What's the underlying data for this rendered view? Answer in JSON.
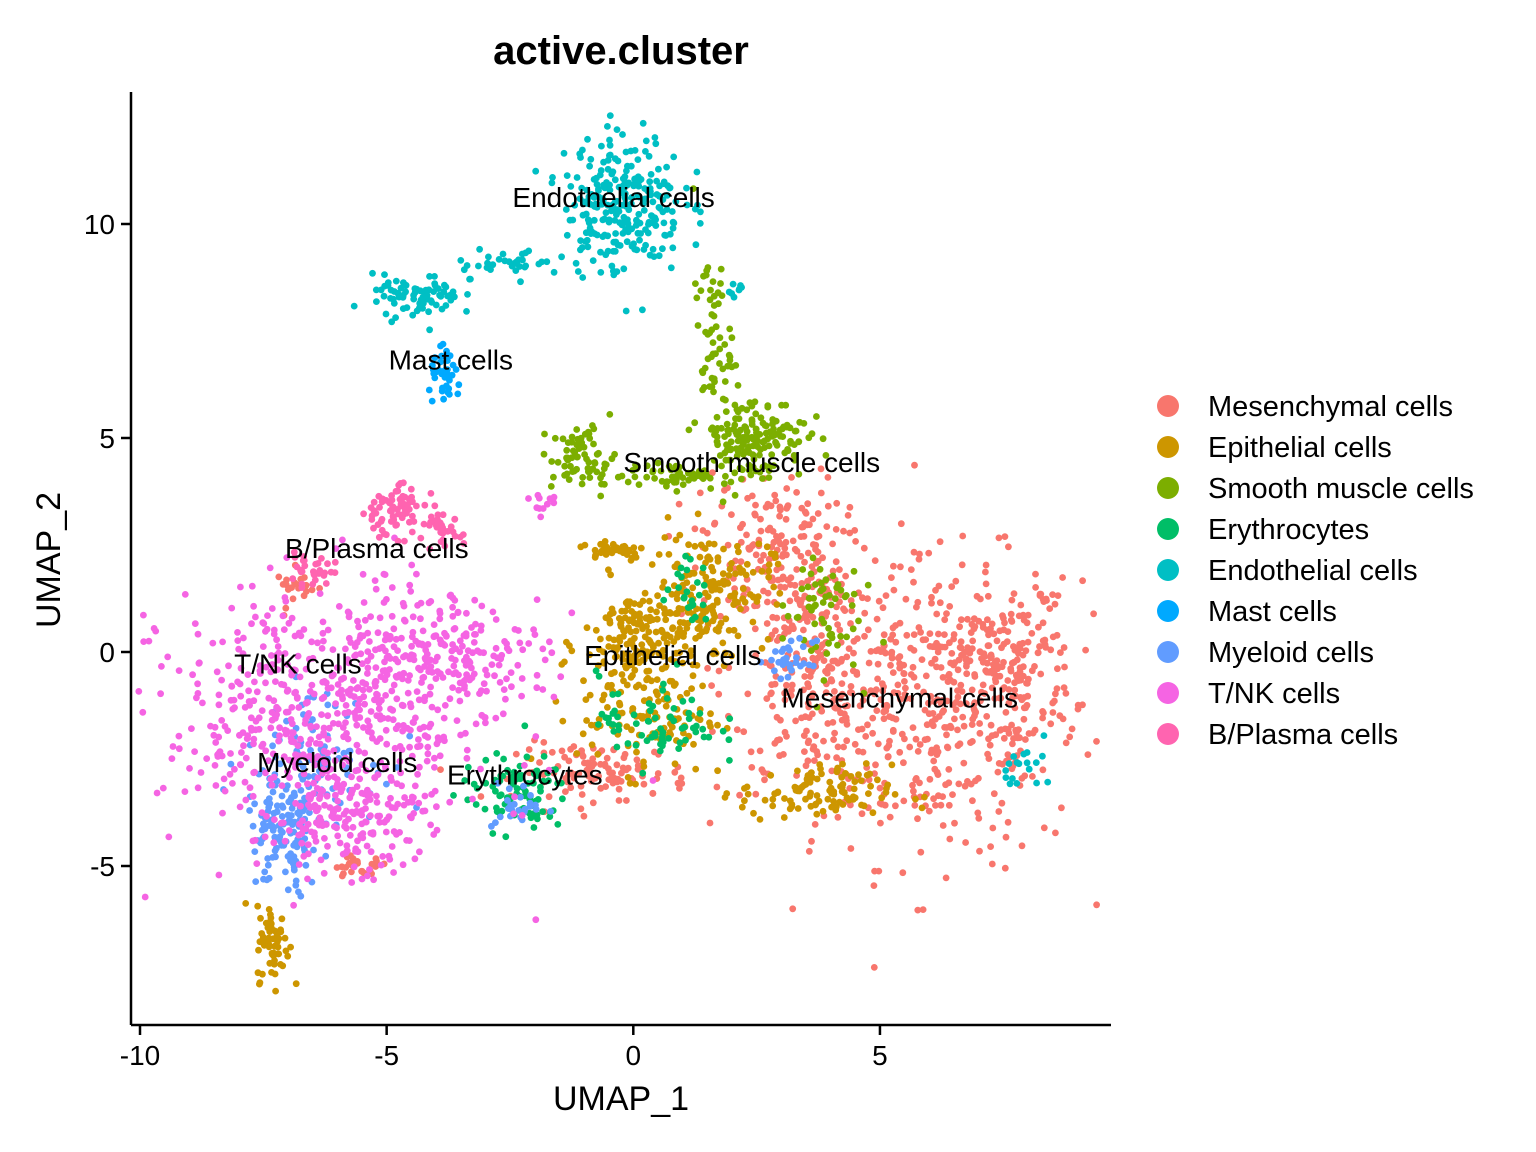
{
  "chart_data": {
    "type": "scatter",
    "title": "active.cluster",
    "xlabel": "UMAP_1",
    "ylabel": "UMAP_2",
    "xlim": [
      -10.2,
      9.5
    ],
    "ylim": [
      -8.5,
      13
    ],
    "xticks": [
      {
        "value": -10,
        "label": "-10"
      },
      {
        "value": -5,
        "label": "-5"
      },
      {
        "value": 0,
        "label": "0"
      },
      {
        "value": 5,
        "label": "5"
      }
    ],
    "yticks": [
      {
        "value": -5,
        "label": "-5"
      },
      {
        "value": 0,
        "label": "0"
      },
      {
        "value": 5,
        "label": "5"
      },
      {
        "value": 10,
        "label": "10"
      }
    ],
    "grid": false,
    "legend_position": "right",
    "series": [
      {
        "name": "Mesenchymal cells",
        "color": "#F8766D",
        "label": {
          "text": "Mesenchymal cells",
          "x": 5.4,
          "y": -1.3
        },
        "regions": [
          {
            "cx": 6.3,
            "cy": -1.4,
            "rx": 2.5,
            "ry": 3.2,
            "n": 420
          },
          {
            "cx": 3.8,
            "cy": -0.5,
            "rx": 1.8,
            "ry": 2.5,
            "n": 260
          },
          {
            "cx": 2.8,
            "cy": 2.5,
            "rx": 1.3,
            "ry": 1.6,
            "n": 170
          },
          {
            "cx": 7.6,
            "cy": -0.3,
            "rx": 1.2,
            "ry": 1.8,
            "n": 140
          },
          {
            "cx": -0.6,
            "cy": -2.8,
            "rx": 1.6,
            "ry": 0.6,
            "n": 110
          },
          {
            "cx": -5.6,
            "cy": -5.0,
            "rx": 0.6,
            "ry": 0.2,
            "n": 25
          },
          {
            "cx": -6.8,
            "cy": 1.5,
            "rx": 0.4,
            "ry": 0.4,
            "n": 20
          }
        ]
      },
      {
        "name": "Epithelial cells",
        "color": "#CD9600",
        "label": {
          "text": "Epithelial cells",
          "x": 0.8,
          "y": -0.3
        },
        "regions": [
          {
            "cx": 0.2,
            "cy": 0.2,
            "rx": 1.1,
            "ry": 1.3,
            "n": 200
          },
          {
            "cx": 1.6,
            "cy": 1.5,
            "rx": 1.1,
            "ry": 1.2,
            "n": 150
          },
          {
            "cx": 3.7,
            "cy": -3.3,
            "rx": 1.4,
            "ry": 0.6,
            "n": 110
          },
          {
            "cx": 0.3,
            "cy": -1.5,
            "rx": 1.3,
            "ry": 1.2,
            "n": 110
          },
          {
            "cx": -0.4,
            "cy": 2.4,
            "rx": 0.6,
            "ry": 0.2,
            "n": 40
          },
          {
            "cx": -7.3,
            "cy": -6.8,
            "rx": 0.3,
            "ry": 0.8,
            "n": 60
          }
        ]
      },
      {
        "name": "Smooth muscle cells",
        "color": "#7CAE00",
        "label": {
          "text": "Smooth muscle cells",
          "x": 2.4,
          "y": 4.2
        },
        "regions": [
          {
            "cx": 2.4,
            "cy": 5.0,
            "rx": 1.0,
            "ry": 0.9,
            "n": 170
          },
          {
            "cx": -1.0,
            "cy": 4.5,
            "rx": 0.6,
            "ry": 0.7,
            "n": 70
          },
          {
            "cx": 1.6,
            "cy": 7.3,
            "rx": 0.35,
            "ry": 1.8,
            "n": 60
          },
          {
            "cx": 0.8,
            "cy": 4.1,
            "rx": 0.9,
            "ry": 0.25,
            "n": 50
          },
          {
            "cx": 3.8,
            "cy": 1.0,
            "rx": 0.7,
            "ry": 1.4,
            "n": 60
          }
        ]
      },
      {
        "name": "Erythrocytes",
        "color": "#00BE67",
        "label": {
          "text": "Erythrocytes",
          "x": -2.2,
          "y": -3.1
        },
        "regions": [
          {
            "cx": -2.4,
            "cy": -3.3,
            "rx": 1.0,
            "ry": 0.8,
            "n": 90
          },
          {
            "cx": 0.5,
            "cy": -1.6,
            "rx": 1.1,
            "ry": 1.0,
            "n": 70
          },
          {
            "cx": 1.1,
            "cy": 1.4,
            "rx": 0.4,
            "ry": 0.7,
            "n": 25
          }
        ]
      },
      {
        "name": "Endothelial cells",
        "color": "#00BFC4",
        "label": {
          "text": "Endothelial cells",
          "x": -0.4,
          "y": 10.4
        },
        "regions": [
          {
            "cx": -0.2,
            "cy": 10.5,
            "rx": 1.1,
            "ry": 1.5,
            "n": 260
          },
          {
            "cx": -4.4,
            "cy": 8.3,
            "rx": 0.8,
            "ry": 0.45,
            "n": 80
          },
          {
            "cx": -2.5,
            "cy": 9.1,
            "rx": 1.1,
            "ry": 0.3,
            "n": 35
          },
          {
            "cx": 2.1,
            "cy": 8.5,
            "rx": 0.15,
            "ry": 0.15,
            "n": 8
          },
          {
            "cx": 8.1,
            "cy": -2.7,
            "rx": 0.5,
            "ry": 0.5,
            "n": 18
          }
        ]
      },
      {
        "name": "Mast cells",
        "color": "#00A9FF",
        "label": {
          "text": "Mast cells",
          "x": -3.7,
          "y": 6.6
        },
        "regions": [
          {
            "cx": -3.8,
            "cy": 6.4,
            "rx": 0.3,
            "ry": 0.55,
            "n": 40
          }
        ]
      },
      {
        "name": "Myeloid cells",
        "color": "#619CFF",
        "label": {
          "text": "Myeloid cells",
          "x": -6.0,
          "y": -2.8
        },
        "regions": [
          {
            "cx": -7.1,
            "cy": -4.3,
            "rx": 0.7,
            "ry": 1.3,
            "n": 120
          },
          {
            "cx": -6.5,
            "cy": -2.4,
            "rx": 1.2,
            "ry": 1.3,
            "n": 90
          },
          {
            "cx": 3.2,
            "cy": -0.2,
            "rx": 0.4,
            "ry": 0.4,
            "n": 30
          },
          {
            "cx": -2.3,
            "cy": -3.6,
            "rx": 0.5,
            "ry": 0.5,
            "n": 25
          }
        ]
      },
      {
        "name": "T/NK cells",
        "color": "#F564E3",
        "label": {
          "text": "T/NK cells",
          "x": -6.8,
          "y": -0.5
        },
        "regions": [
          {
            "cx": -6.2,
            "cy": -1.6,
            "rx": 3.0,
            "ry": 2.8,
            "n": 620
          },
          {
            "cx": -3.7,
            "cy": 0.0,
            "rx": 1.8,
            "ry": 1.2,
            "n": 180
          },
          {
            "cx": -5.8,
            "cy": -3.9,
            "rx": 1.3,
            "ry": 0.9,
            "n": 120
          },
          {
            "cx": -1.8,
            "cy": 3.5,
            "rx": 0.3,
            "ry": 0.3,
            "n": 12
          }
        ]
      },
      {
        "name": "B/Plasma cells",
        "color": "#FF64B0",
        "label": {
          "text": "B/Plasma cells",
          "x": -5.2,
          "y": 2.2
        },
        "regions": [
          {
            "cx": -4.9,
            "cy": 3.3,
            "rx": 0.6,
            "ry": 0.55,
            "n": 70
          },
          {
            "cx": -3.9,
            "cy": 2.8,
            "rx": 0.4,
            "ry": 0.4,
            "n": 35
          },
          {
            "cx": -6.6,
            "cy": 1.9,
            "rx": 0.5,
            "ry": 0.3,
            "n": 30
          }
        ]
      }
    ]
  }
}
